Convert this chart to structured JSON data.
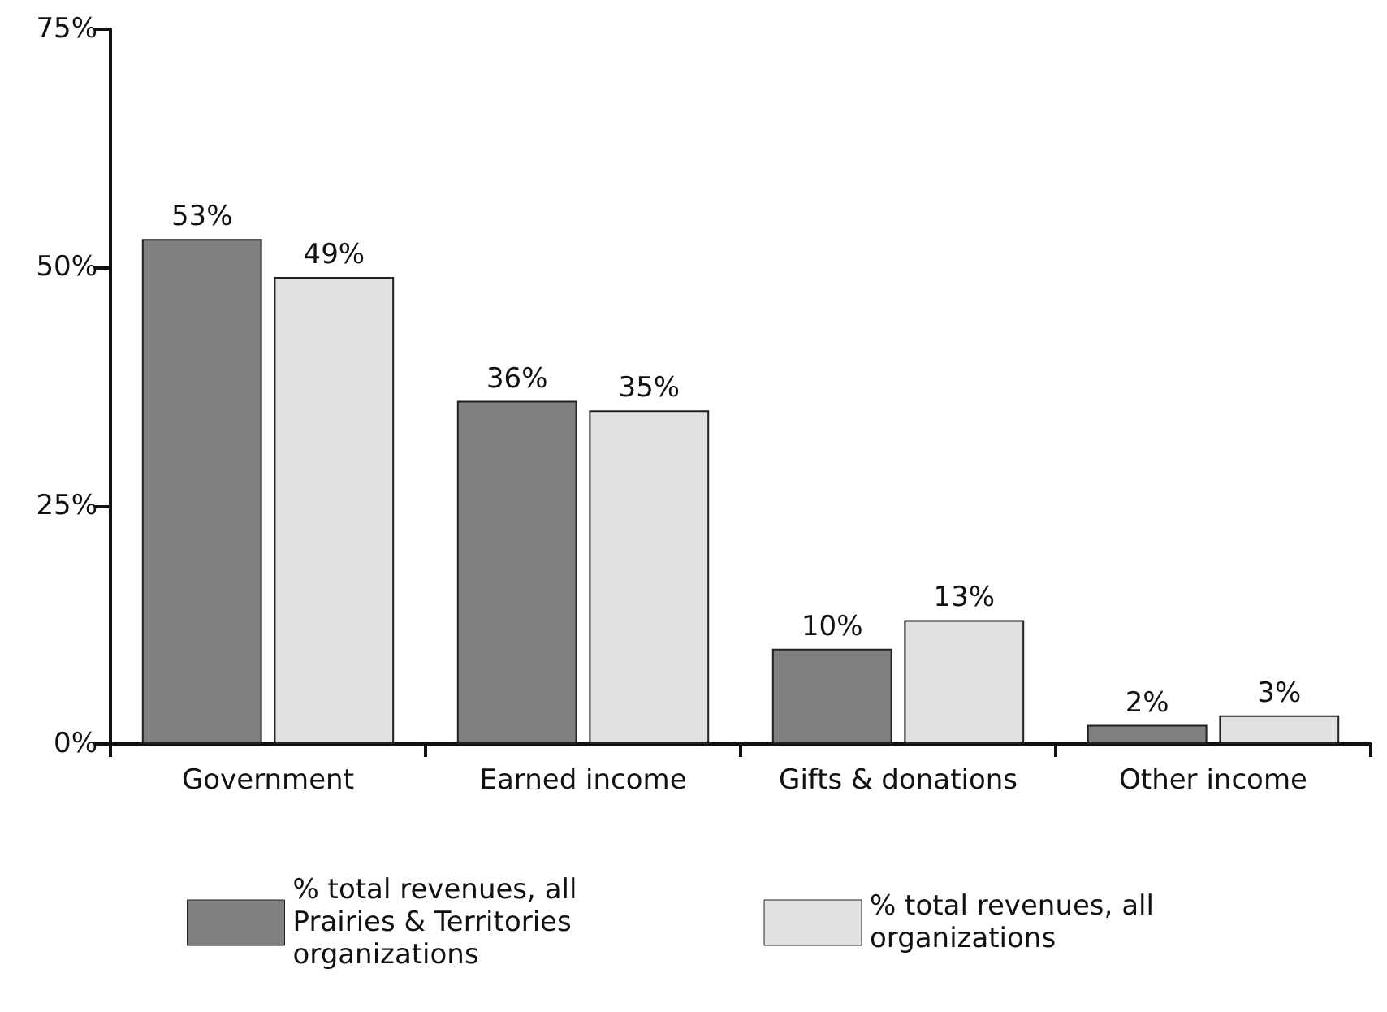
{
  "chart_data": {
    "type": "bar",
    "categories": [
      "Government",
      "Earned income",
      "Gifts & donations",
      "Other income"
    ],
    "series": [
      {
        "name": "% total revenues, all Prairies & Territories organizations",
        "color": "#808080",
        "values": [
          53,
          36,
          10,
          2
        ],
        "value_labels": [
          "53%",
          "36%",
          "10%",
          "2%"
        ]
      },
      {
        "name": "% total revenues, all organizations",
        "color": "#e1e1e3",
        "values": [
          49,
          35,
          13,
          3
        ],
        "value_labels": [
          "49%",
          "35%",
          "13%",
          "3%"
        ]
      }
    ],
    "ylim": [
      0,
      75
    ],
    "yticks": [
      {
        "value": 0,
        "label": "0%"
      },
      {
        "value": 25,
        "label": "25%"
      },
      {
        "value": 50,
        "label": "50%"
      },
      {
        "value": 75,
        "label": "75%"
      }
    ],
    "grid": false,
    "legend": "bottom"
  }
}
